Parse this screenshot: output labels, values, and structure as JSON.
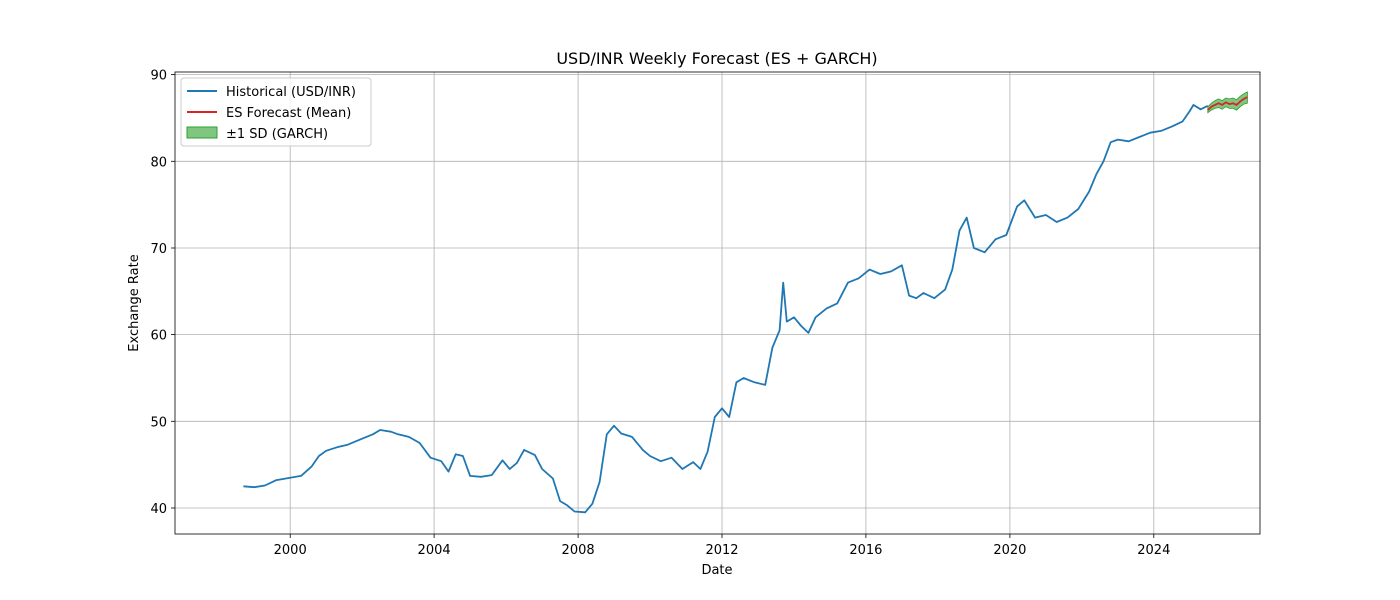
{
  "chart_data": {
    "type": "line",
    "title": "USD/INR Weekly Forecast (ES + GARCH)",
    "xlabel": "Date",
    "ylabel": "Exchange Rate",
    "xlim": [
      1996.8,
      2026.95
    ],
    "ylim": [
      37,
      90.3
    ],
    "x_ticks": [
      2000,
      2004,
      2008,
      2012,
      2016,
      2020,
      2024
    ],
    "y_ticks": [
      40,
      50,
      60,
      70,
      80,
      90
    ],
    "grid": true,
    "legend_position": "top-left",
    "colors": {
      "historical": "#1f77b4",
      "forecast": "#d62728",
      "band": "#2ca02c"
    },
    "series": [
      {
        "name": "Historical (USD/INR)",
        "kind": "line",
        "x": [
          1998.7,
          1999.0,
          1999.3,
          1999.6,
          2000.0,
          2000.3,
          2000.6,
          2000.8,
          2001.0,
          2001.3,
          2001.6,
          2002.0,
          2002.3,
          2002.5,
          2002.8,
          2003.0,
          2003.3,
          2003.6,
          2003.9,
          2004.2,
          2004.4,
          2004.6,
          2004.8,
          2005.0,
          2005.3,
          2005.6,
          2005.9,
          2006.1,
          2006.3,
          2006.5,
          2006.8,
          2007.0,
          2007.3,
          2007.5,
          2007.7,
          2007.9,
          2008.2,
          2008.4,
          2008.6,
          2008.8,
          2009.0,
          2009.2,
          2009.5,
          2009.8,
          2010.0,
          2010.3,
          2010.6,
          2010.9,
          2011.2,
          2011.4,
          2011.6,
          2011.8,
          2012.0,
          2012.2,
          2012.4,
          2012.6,
          2012.9,
          2013.2,
          2013.4,
          2013.6,
          2013.7,
          2013.8,
          2014.0,
          2014.2,
          2014.4,
          2014.6,
          2014.9,
          2015.2,
          2015.5,
          2015.8,
          2016.1,
          2016.4,
          2016.7,
          2017.0,
          2017.2,
          2017.4,
          2017.6,
          2017.9,
          2018.2,
          2018.4,
          2018.6,
          2018.8,
          2019.0,
          2019.3,
          2019.6,
          2019.9,
          2020.2,
          2020.4,
          2020.7,
          2021.0,
          2021.3,
          2021.6,
          2021.9,
          2022.2,
          2022.4,
          2022.6,
          2022.8,
          2023.0,
          2023.3,
          2023.6,
          2023.9,
          2024.2,
          2024.5,
          2024.8,
          2025.0,
          2025.1,
          2025.3,
          2025.5
        ],
        "y": [
          42.5,
          42.4,
          42.6,
          43.2,
          43.5,
          43.7,
          44.8,
          46.0,
          46.6,
          47.0,
          47.3,
          48.0,
          48.5,
          49.0,
          48.8,
          48.5,
          48.2,
          47.5,
          45.8,
          45.4,
          44.2,
          46.2,
          46.0,
          43.7,
          43.6,
          43.8,
          45.5,
          44.5,
          45.2,
          46.7,
          46.1,
          44.5,
          43.4,
          40.8,
          40.3,
          39.6,
          39.5,
          40.5,
          43.0,
          48.5,
          49.5,
          48.6,
          48.2,
          46.7,
          46.0,
          45.4,
          45.8,
          44.5,
          45.3,
          44.5,
          46.5,
          50.5,
          51.5,
          50.5,
          54.5,
          55.0,
          54.5,
          54.2,
          58.5,
          60.5,
          66.0,
          61.5,
          62.0,
          61.0,
          60.2,
          62.0,
          63.0,
          63.6,
          66.0,
          66.5,
          67.5,
          67.0,
          67.3,
          68.0,
          64.5,
          64.2,
          64.8,
          64.2,
          65.2,
          67.5,
          72.0,
          73.5,
          70.0,
          69.5,
          71.0,
          71.5,
          74.8,
          75.5,
          73.5,
          73.8,
          73.0,
          73.5,
          74.5,
          76.5,
          78.5,
          80.0,
          82.2,
          82.5,
          82.3,
          82.8,
          83.3,
          83.5,
          84.0,
          84.6,
          85.8,
          86.5,
          86.0,
          86.4
        ]
      },
      {
        "name": "ES Forecast (Mean)",
        "kind": "line",
        "x": [
          2025.5,
          2025.6,
          2025.7,
          2025.8,
          2025.9,
          2026.0,
          2026.1,
          2026.2,
          2026.3,
          2026.4,
          2026.5,
          2026.6
        ],
        "y": [
          85.9,
          86.3,
          86.5,
          86.7,
          86.5,
          86.8,
          86.6,
          86.7,
          86.5,
          86.9,
          87.2,
          87.4
        ]
      },
      {
        "name": "±1 SD (GARCH)",
        "kind": "band",
        "x": [
          2025.5,
          2025.6,
          2025.7,
          2025.8,
          2025.9,
          2026.0,
          2026.1,
          2026.2,
          2026.3,
          2026.4,
          2026.5,
          2026.6
        ],
        "lower": [
          85.6,
          85.9,
          86.1,
          86.2,
          86.0,
          86.3,
          86.1,
          86.1,
          85.9,
          86.3,
          86.6,
          86.7
        ],
        "upper": [
          86.3,
          86.7,
          87.0,
          87.2,
          87.0,
          87.3,
          87.2,
          87.3,
          87.1,
          87.5,
          87.8,
          88.0
        ]
      }
    ]
  }
}
